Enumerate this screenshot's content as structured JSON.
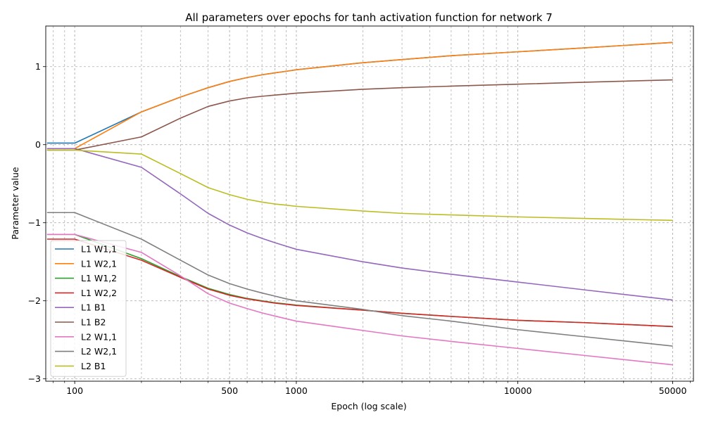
{
  "chart_data": {
    "type": "line",
    "title": "All parameters over epochs for tanh activation function for network 7",
    "xlabel": "Epoch (log scale)",
    "ylabel": "Parameter value",
    "x_scale": "log",
    "xlim": [
      74,
      62000
    ],
    "ylim": [
      -3.03,
      1.52
    ],
    "grid": true,
    "legend_position": "lower-left",
    "x_ticks": [
      100,
      500,
      1000,
      10000,
      50000
    ],
    "x_tick_labels": [
      "100",
      "500",
      "1000",
      "10000",
      "50000"
    ],
    "y_ticks": [
      -3,
      -2,
      -1,
      0,
      1
    ],
    "y_tick_labels": [
      "−3",
      "−2",
      "−1",
      "0",
      "1"
    ],
    "x": [
      75,
      100,
      200,
      300,
      400,
      500,
      600,
      700,
      800,
      900,
      1000,
      2000,
      3000,
      5000,
      10000,
      20000,
      50000
    ],
    "series": [
      {
        "name": "L1 W1,1",
        "color": "#1f77b4",
        "values": [
          0.02,
          0.02,
          0.42,
          0.61,
          0.73,
          0.81,
          0.86,
          0.895,
          0.92,
          0.94,
          0.96,
          1.05,
          1.09,
          1.14,
          1.19,
          1.24,
          1.31
        ]
      },
      {
        "name": "L1 W2,1",
        "color": "#ff7f0e",
        "values": [
          -0.05,
          -0.05,
          0.42,
          0.61,
          0.73,
          0.81,
          0.86,
          0.895,
          0.92,
          0.94,
          0.96,
          1.05,
          1.09,
          1.14,
          1.19,
          1.24,
          1.31
        ]
      },
      {
        "name": "L1 W1,2",
        "color": "#2ca02c",
        "values": [
          -1.15,
          -1.15,
          -1.46,
          -1.69,
          -1.84,
          -1.92,
          -1.97,
          -2.0,
          -2.025,
          -2.04,
          -2.055,
          -2.12,
          -2.16,
          -2.2,
          -2.25,
          -2.28,
          -2.33
        ]
      },
      {
        "name": "L1 W2,2",
        "color": "#d62728",
        "values": [
          -1.21,
          -1.21,
          -1.48,
          -1.7,
          -1.85,
          -1.93,
          -1.975,
          -2.005,
          -2.03,
          -2.045,
          -2.06,
          -2.12,
          -2.16,
          -2.2,
          -2.25,
          -2.28,
          -2.33
        ]
      },
      {
        "name": "L1 B1",
        "color": "#9467bd",
        "values": [
          -0.05,
          -0.05,
          -0.29,
          -0.63,
          -0.88,
          -1.03,
          -1.13,
          -1.2,
          -1.255,
          -1.3,
          -1.34,
          -1.5,
          -1.58,
          -1.66,
          -1.76,
          -1.86,
          -1.99
        ]
      },
      {
        "name": "L1 B2",
        "color": "#8c564b",
        "values": [
          -0.07,
          -0.07,
          0.1,
          0.34,
          0.49,
          0.56,
          0.6,
          0.62,
          0.635,
          0.648,
          0.66,
          0.71,
          0.73,
          0.75,
          0.775,
          0.8,
          0.83
        ]
      },
      {
        "name": "L2 W1,1",
        "color": "#e377c2",
        "values": [
          -1.15,
          -1.15,
          -1.38,
          -1.68,
          -1.91,
          -2.03,
          -2.1,
          -2.155,
          -2.195,
          -2.23,
          -2.26,
          -2.38,
          -2.45,
          -2.52,
          -2.61,
          -2.7,
          -2.82
        ]
      },
      {
        "name": "L2 W2,1",
        "color": "#7f7f7f",
        "values": [
          -0.87,
          -0.87,
          -1.21,
          -1.48,
          -1.67,
          -1.78,
          -1.85,
          -1.9,
          -1.94,
          -1.975,
          -2.0,
          -2.11,
          -2.19,
          -2.26,
          -2.37,
          -2.46,
          -2.58
        ]
      },
      {
        "name": "L2 B1",
        "color": "#bcbd22",
        "values": [
          -0.07,
          -0.07,
          -0.12,
          -0.37,
          -0.55,
          -0.64,
          -0.7,
          -0.735,
          -0.76,
          -0.775,
          -0.79,
          -0.85,
          -0.88,
          -0.9,
          -0.925,
          -0.945,
          -0.97
        ]
      }
    ]
  }
}
